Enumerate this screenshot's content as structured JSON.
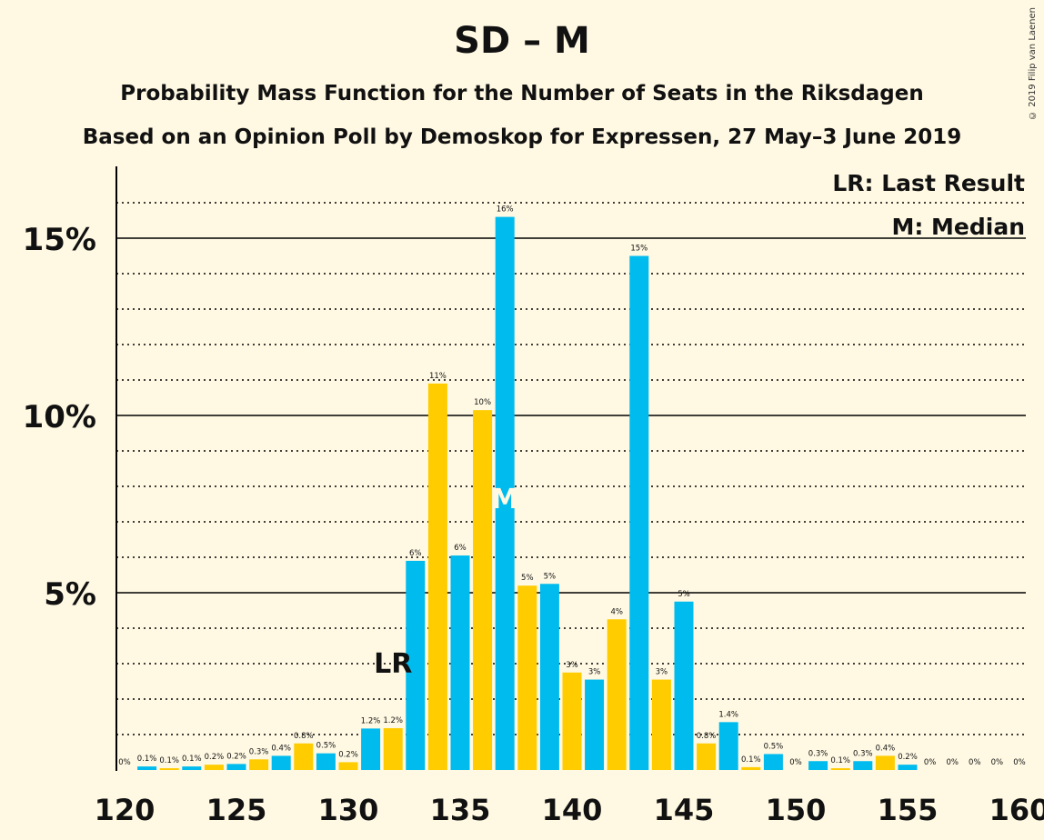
{
  "chart_data": {
    "type": "bar",
    "title": "SD – M",
    "subtitle": "Probability Mass Function for the Number of Seats in the Riksdagen",
    "subtitle2": "Based on an Opinion Poll by Demoskop for Expressen, 27 May–3 June 2019",
    "copyright": "© 2019 Filip van Laenen",
    "xlim": [
      120,
      160
    ],
    "ylim": [
      0,
      17
    ],
    "x_ticks": [
      "120",
      "125",
      "130",
      "135",
      "140",
      "145",
      "150",
      "155",
      "160"
    ],
    "y_ticks": [
      {
        "value": 5,
        "label": "5%"
      },
      {
        "value": 10,
        "label": "10%"
      },
      {
        "value": 15,
        "label": "15%"
      }
    ],
    "legend": [
      "LR: Last Result",
      "M: Median"
    ],
    "last_result": {
      "seat": 132,
      "label": "LR"
    },
    "median": {
      "seat": 137,
      "label": "M"
    },
    "colors": {
      "blue": "#00BBEE",
      "yellow": "#FFCC00",
      "background": "#FFF9E3"
    },
    "bars": [
      {
        "seat": 120,
        "value": 0.0,
        "label": "0%",
        "color": "blue"
      },
      {
        "seat": 121,
        "value": 0.1,
        "label": "0.1%",
        "color": "blue"
      },
      {
        "seat": 122,
        "value": 0.05,
        "label": "0.1%",
        "color": "yellow"
      },
      {
        "seat": 123,
        "value": 0.1,
        "label": "0.1%",
        "color": "blue"
      },
      {
        "seat": 124,
        "value": 0.15,
        "label": "0.2%",
        "color": "yellow"
      },
      {
        "seat": 125,
        "value": 0.17,
        "label": "0.2%",
        "color": "blue"
      },
      {
        "seat": 126,
        "value": 0.3,
        "label": "0.3%",
        "color": "yellow"
      },
      {
        "seat": 127,
        "value": 0.4,
        "label": "0.4%",
        "color": "blue"
      },
      {
        "seat": 128,
        "value": 0.75,
        "label": "0.8%",
        "color": "yellow"
      },
      {
        "seat": 129,
        "value": 0.47,
        "label": "0.5%",
        "color": "blue"
      },
      {
        "seat": 130,
        "value": 0.22,
        "label": "0.2%",
        "color": "yellow"
      },
      {
        "seat": 131,
        "value": 1.17,
        "label": "1.2%",
        "color": "blue"
      },
      {
        "seat": 132,
        "value": 1.18,
        "label": "1.2%",
        "color": "yellow"
      },
      {
        "seat": 133,
        "value": 5.9,
        "label": "6%",
        "color": "blue"
      },
      {
        "seat": 134,
        "value": 10.9,
        "label": "11%",
        "color": "yellow"
      },
      {
        "seat": 135,
        "value": 6.05,
        "label": "6%",
        "color": "blue"
      },
      {
        "seat": 136,
        "value": 10.15,
        "label": "10%",
        "color": "yellow"
      },
      {
        "seat": 137,
        "value": 15.6,
        "label": "16%",
        "color": "blue"
      },
      {
        "seat": 138,
        "value": 5.2,
        "label": "5%",
        "color": "yellow"
      },
      {
        "seat": 139,
        "value": 5.25,
        "label": "5%",
        "color": "blue"
      },
      {
        "seat": 140,
        "value": 2.75,
        "label": "3%",
        "color": "yellow"
      },
      {
        "seat": 141,
        "value": 2.55,
        "label": "3%",
        "color": "blue"
      },
      {
        "seat": 142,
        "value": 4.25,
        "label": "4%",
        "color": "yellow"
      },
      {
        "seat": 143,
        "value": 14.5,
        "label": "15%",
        "color": "blue"
      },
      {
        "seat": 144,
        "value": 2.55,
        "label": "3%",
        "color": "yellow"
      },
      {
        "seat": 145,
        "value": 4.75,
        "label": "5%",
        "color": "blue"
      },
      {
        "seat": 146,
        "value": 0.75,
        "label": "0.8%",
        "color": "yellow"
      },
      {
        "seat": 147,
        "value": 1.35,
        "label": "1.4%",
        "color": "blue"
      },
      {
        "seat": 148,
        "value": 0.08,
        "label": "0.1%",
        "color": "yellow"
      },
      {
        "seat": 149,
        "value": 0.45,
        "label": "0.5%",
        "color": "blue"
      },
      {
        "seat": 150,
        "value": 0.0,
        "label": "0%",
        "color": "yellow"
      },
      {
        "seat": 151,
        "value": 0.25,
        "label": "0.3%",
        "color": "blue"
      },
      {
        "seat": 152,
        "value": 0.05,
        "label": "0.1%",
        "color": "yellow"
      },
      {
        "seat": 153,
        "value": 0.25,
        "label": "0.3%",
        "color": "blue"
      },
      {
        "seat": 154,
        "value": 0.4,
        "label": "0.4%",
        "color": "yellow"
      },
      {
        "seat": 155,
        "value": 0.15,
        "label": "0.2%",
        "color": "blue"
      },
      {
        "seat": 156,
        "value": 0.0,
        "label": "0%",
        "color": "yellow"
      },
      {
        "seat": 157,
        "value": 0.0,
        "label": "0%",
        "color": "blue"
      },
      {
        "seat": 158,
        "value": 0.0,
        "label": "0%",
        "color": "yellow"
      },
      {
        "seat": 159,
        "value": 0.0,
        "label": "0%",
        "color": "blue"
      },
      {
        "seat": 160,
        "value": 0.0,
        "label": "0%",
        "color": "yellow"
      }
    ]
  }
}
